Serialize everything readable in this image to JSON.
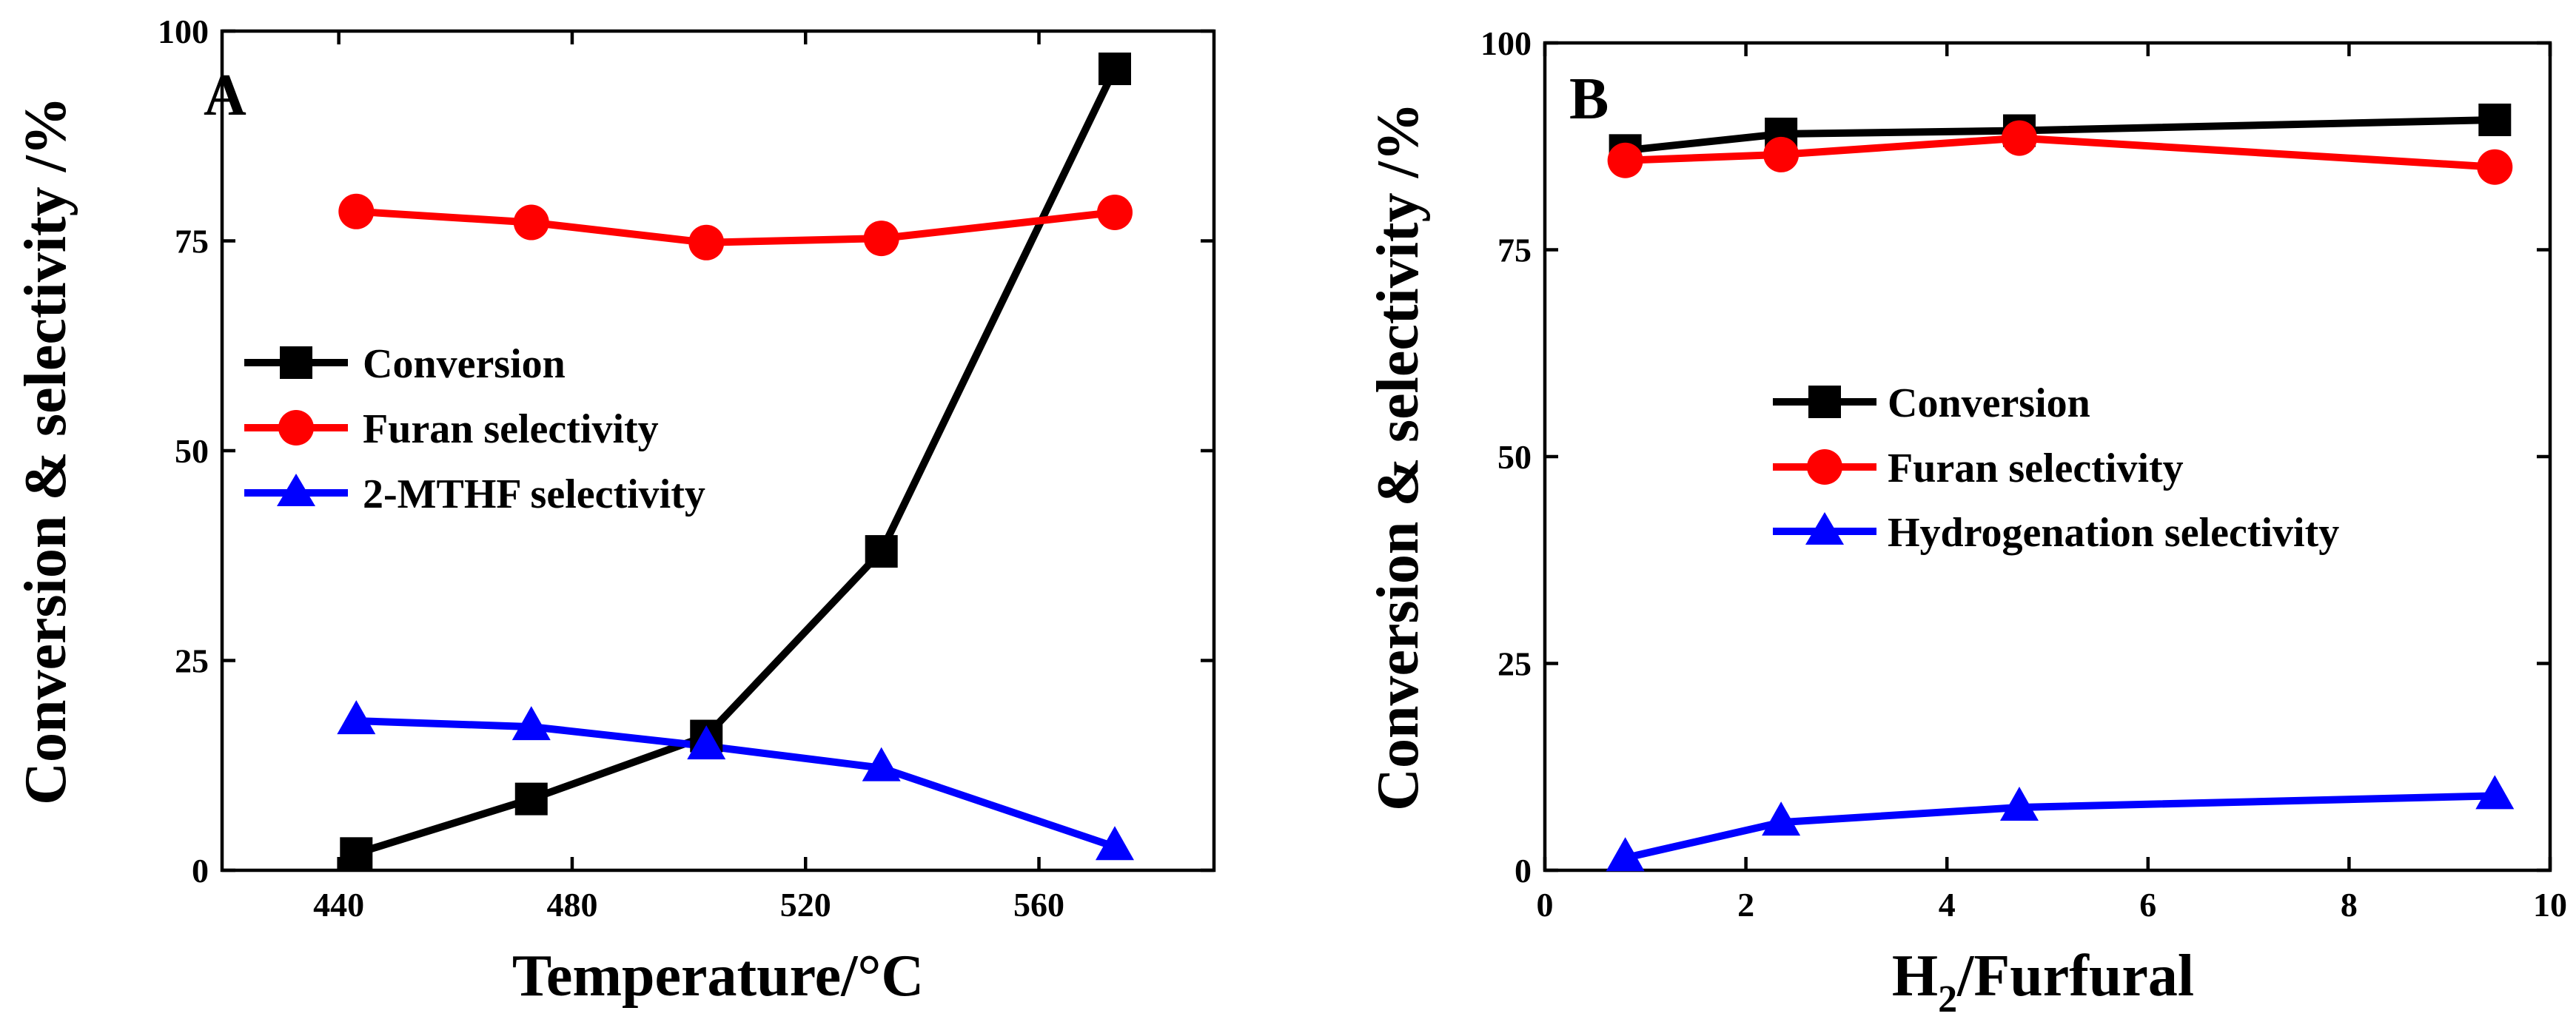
{
  "chart_data": [
    {
      "type": "line",
      "panel_label": "A",
      "xlabel": "Temperature/°C",
      "ylabel": "Conversion & selectivity /%",
      "xlim": [
        420,
        590
      ],
      "ylim": [
        0,
        100
      ],
      "xticks": [
        440,
        480,
        520,
        560
      ],
      "yticks": [
        0,
        25,
        50,
        75,
        100
      ],
      "x": [
        443,
        473,
        503,
        533,
        573
      ],
      "series": [
        {
          "name": "Conversion",
          "color": "#000000",
          "marker": "square",
          "values": [
            2,
            8.5,
            16,
            38,
            95.5
          ]
        },
        {
          "name": "Furan selectivity",
          "color": "#ff0000",
          "marker": "circle",
          "values": [
            78.5,
            77.2,
            74.8,
            75.3,
            78.4
          ]
        },
        {
          "name": "2-MTHF selectivity",
          "color": "#0000ff",
          "marker": "triangle",
          "values": [
            17.8,
            17.1,
            14.8,
            12.2,
            2.8
          ]
        }
      ]
    },
    {
      "type": "line",
      "panel_label": "B",
      "xlabel_main": "H",
      "xlabel_sub": "2",
      "xlabel_rest": "/Furfural",
      "ylabel": "Conversion & selectivity /%",
      "xlim": [
        0,
        10
      ],
      "ylim": [
        0,
        100
      ],
      "xticks": [
        0,
        2,
        4,
        6,
        8,
        10
      ],
      "yticks": [
        0,
        25,
        50,
        75,
        100
      ],
      "x": [
        0.8,
        2.35,
        4.72,
        9.45
      ],
      "series": [
        {
          "name": "Conversion",
          "color": "#000000",
          "marker": "square",
          "values": [
            87,
            89,
            89.4,
            90.7
          ]
        },
        {
          "name": "Furan selectivity",
          "color": "#ff0000",
          "marker": "circle",
          "values": [
            85.8,
            86.5,
            88.5,
            85
          ]
        },
        {
          "name": "Hydrogenation selectivity",
          "color": "#0000ff",
          "marker": "triangle",
          "values": [
            1.5,
            5.8,
            7.6,
            9
          ]
        }
      ]
    }
  ]
}
